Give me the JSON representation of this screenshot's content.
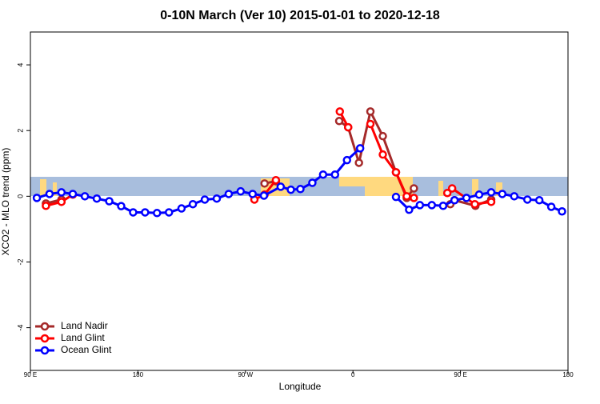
{
  "chart_data": {
    "type": "line",
    "title": "0-10N March (Ver 10)   2015-01-01 to 2020-12-18",
    "xlabel": "Longitude",
    "ylabel": "XCO2 - MLO trend (ppm)",
    "xlim": [
      90,
      540
    ],
    "ylim": [
      -5.3,
      5
    ],
    "xticks": [
      {
        "value": 90,
        "label": "90 E"
      },
      180,
      {
        "value": 270,
        "label": "90 W"
      },
      {
        "value": 360,
        "label": "0"
      },
      {
        "value": 450,
        "label": "90 E"
      },
      {
        "value": 540,
        "label": "180"
      }
    ],
    "yticks": [
      -4,
      -2,
      0,
      2,
      4
    ],
    "legend": "bottomleft",
    "series": [
      {
        "name": "Land Nadir",
        "color": "#a52a2a",
        "x": [
          103,
          116,
          null,
          286,
          295.5,
          null,
          348.5,
          356,
          365,
          374.6,
          385,
          396,
          405,
          411,
          null,
          441.5,
          445,
          462.5,
          475.7
        ],
        "values": [
          -0.22,
          -0.1,
          null,
          0.39,
          0.46,
          null,
          2.29,
          2.1,
          1.02,
          2.58,
          1.83,
          0.73,
          -0.05,
          0.24,
          null,
          -0.24,
          -0.12,
          -0.29,
          -0.1
        ]
      },
      {
        "name": "Land Glint",
        "color": "#ff0000",
        "x": [
          103,
          116,
          125.5,
          null,
          277.5,
          286,
          295.5,
          null,
          349,
          356,
          null,
          374.6,
          385,
          396,
          405,
          411,
          null,
          439,
          443,
          462,
          475.7
        ],
        "values": [
          -0.29,
          -0.17,
          0.05,
          null,
          -0.1,
          0.05,
          0.49,
          null,
          2.58,
          2.1,
          null,
          2.2,
          1.27,
          0.73,
          0,
          -0.05,
          null,
          0.1,
          0.24,
          -0.24,
          -0.17
        ]
      },
      {
        "name": "Ocean Glint",
        "color": "#0000ff",
        "x": [
          95.4,
          106,
          116,
          125.5,
          135.6,
          145.6,
          156,
          166,
          176,
          186,
          196,
          206,
          216.5,
          226,
          236,
          246,
          256,
          266,
          276,
          285.5,
          299.5,
          308,
          316,
          326,
          335,
          345,
          355,
          366,
          null,
          396,
          407,
          416,
          426,
          435.5,
          445,
          455,
          465.6,
          475.7,
          485,
          495,
          506,
          516,
          526,
          535
        ],
        "values": [
          -0.05,
          0.07,
          0.12,
          0.07,
          0,
          -0.07,
          -0.15,
          -0.3,
          -0.49,
          -0.49,
          -0.51,
          -0.49,
          -0.37,
          -0.24,
          -0.1,
          -0.07,
          0.07,
          0.15,
          0.07,
          0.02,
          0.29,
          0.2,
          0.22,
          0.41,
          0.66,
          0.66,
          1.1,
          1.46,
          null,
          -0.02,
          -0.41,
          -0.27,
          -0.27,
          -0.29,
          -0.12,
          -0.05,
          0.05,
          0.12,
          0.07,
          0,
          -0.1,
          -0.12,
          -0.32,
          -0.46
        ]
      }
    ]
  }
}
